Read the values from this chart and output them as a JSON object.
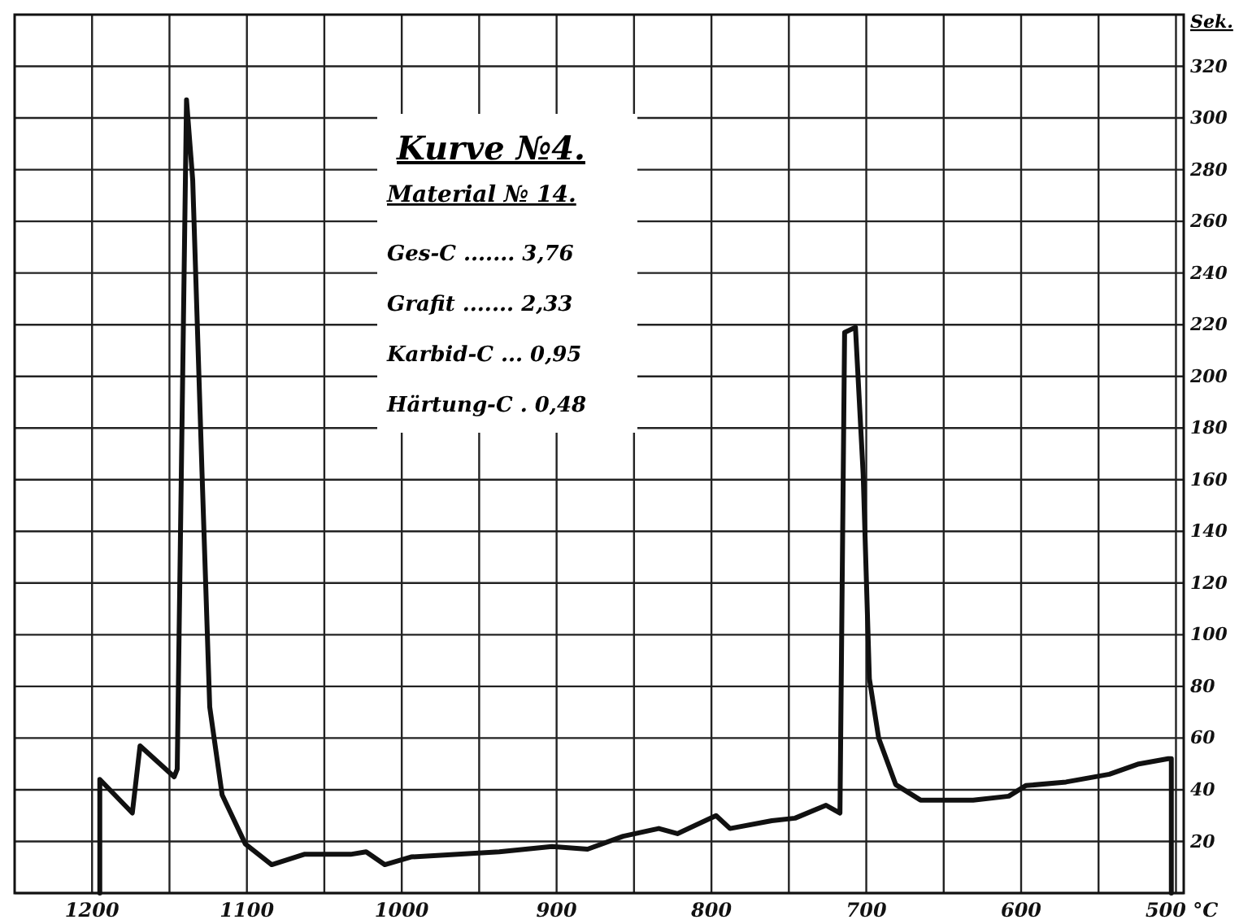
{
  "chart_data": {
    "type": "line",
    "title": "Kurve №4.",
    "subtitle": "Material № 14.",
    "ylabel": "Sek.",
    "annotations": [
      "Ges-C ....... 3,76",
      "Grafit ....... 2,33",
      "Karbid-C ... 0,95",
      "Härtung-C . 0,48"
    ],
    "x": [
      1195,
      1195,
      1174,
      1169,
      1147,
      1145,
      1139,
      1135,
      1129,
      1124,
      1116,
      1101,
      1084,
      1063,
      1033,
      1023,
      1011,
      994,
      937,
      903,
      880,
      857,
      834,
      822,
      797,
      788,
      761,
      746,
      726,
      717,
      714,
      707,
      702,
      698,
      692,
      681,
      665,
      631,
      608,
      597,
      571,
      543,
      524,
      505,
      503,
      503
    ],
    "series": [
      {
        "color": "#111111",
        "values": [
          0,
          44,
          31,
          57,
          45,
          48,
          307,
          276,
          163,
          72,
          38,
          19,
          11,
          15,
          15,
          16,
          11,
          14,
          16,
          18,
          17,
          22,
          25,
          23,
          30,
          25,
          28,
          29,
          34,
          31,
          217,
          219,
          162,
          83,
          60,
          42,
          36,
          36,
          37.5,
          41.6,
          43,
          46,
          50,
          52,
          52,
          0
        ]
      }
    ],
    "xlim": [
      1250,
      495
    ],
    "ylim": [
      0,
      340
    ],
    "xticks": [
      1200,
      {
        "value": 1150,
        "label": null
      },
      1100,
      {
        "value": 1050,
        "label": null
      },
      1000,
      {
        "value": 950,
        "label": null
      },
      900,
      {
        "value": 850,
        "label": null
      },
      800,
      {
        "value": 750,
        "label": null
      },
      700,
      {
        "value": 650,
        "label": null
      },
      600,
      {
        "value": 550,
        "label": null
      },
      {
        "value": 500,
        "label": "500 °C"
      }
    ],
    "yticks": [
      {
        "value": 0,
        "label": null
      },
      20,
      40,
      60,
      80,
      100,
      120,
      140,
      160,
      180,
      200,
      220,
      240,
      260,
      280,
      300,
      320
    ],
    "grid": true,
    "marker": "none",
    "line_style": "solid"
  }
}
